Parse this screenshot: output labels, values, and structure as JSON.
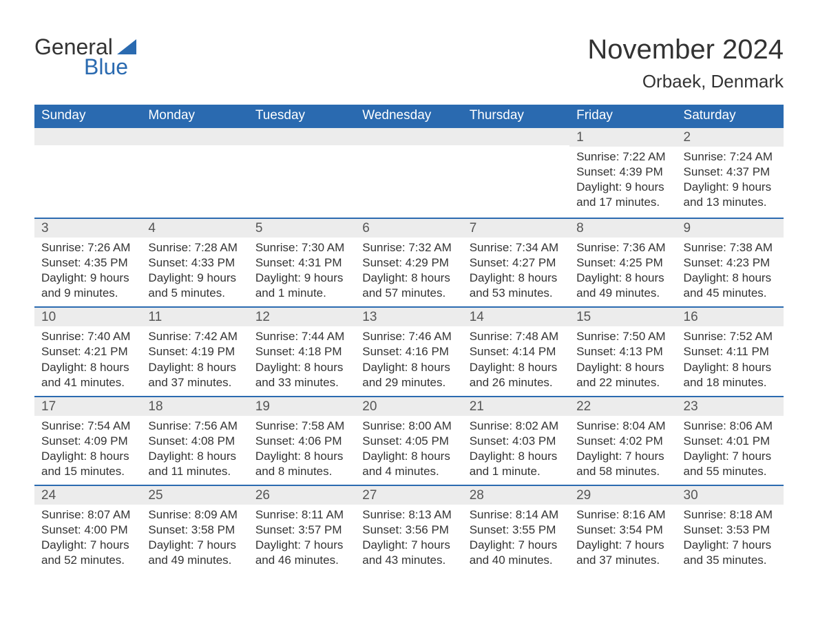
{
  "brand": {
    "general": "General",
    "blue": "Blue",
    "accent": "#2a6ab0"
  },
  "title": "November 2024",
  "location": "Orbaek, Denmark",
  "colors": {
    "header_bg": "#2a6ab0",
    "header_text": "#ffffff",
    "daynum_bg": "#ececec",
    "rule": "#2a6ab0",
    "body_bg": "#ffffff",
    "text": "#333333"
  },
  "fonts": {
    "family": "Segoe UI, Arial, sans-serif",
    "title_size_pt": 30,
    "location_size_pt": 20,
    "weekday_size_pt": 14,
    "daynum_size_pt": 14,
    "body_size_pt": 13
  },
  "weekdays": [
    "Sunday",
    "Monday",
    "Tuesday",
    "Wednesday",
    "Thursday",
    "Friday",
    "Saturday"
  ],
  "layout": {
    "columns": 7,
    "rows": 5,
    "first_day_column_index": 5
  },
  "grid": [
    [
      null,
      null,
      null,
      null,
      null,
      {
        "n": "1",
        "sunrise": "Sunrise: 7:22 AM",
        "sunset": "Sunset: 4:39 PM",
        "day1": "Daylight: 9 hours",
        "day2": "and 17 minutes."
      },
      {
        "n": "2",
        "sunrise": "Sunrise: 7:24 AM",
        "sunset": "Sunset: 4:37 PM",
        "day1": "Daylight: 9 hours",
        "day2": "and 13 minutes."
      }
    ],
    [
      {
        "n": "3",
        "sunrise": "Sunrise: 7:26 AM",
        "sunset": "Sunset: 4:35 PM",
        "day1": "Daylight: 9 hours",
        "day2": "and 9 minutes."
      },
      {
        "n": "4",
        "sunrise": "Sunrise: 7:28 AM",
        "sunset": "Sunset: 4:33 PM",
        "day1": "Daylight: 9 hours",
        "day2": "and 5 minutes."
      },
      {
        "n": "5",
        "sunrise": "Sunrise: 7:30 AM",
        "sunset": "Sunset: 4:31 PM",
        "day1": "Daylight: 9 hours",
        "day2": "and 1 minute."
      },
      {
        "n": "6",
        "sunrise": "Sunrise: 7:32 AM",
        "sunset": "Sunset: 4:29 PM",
        "day1": "Daylight: 8 hours",
        "day2": "and 57 minutes."
      },
      {
        "n": "7",
        "sunrise": "Sunrise: 7:34 AM",
        "sunset": "Sunset: 4:27 PM",
        "day1": "Daylight: 8 hours",
        "day2": "and 53 minutes."
      },
      {
        "n": "8",
        "sunrise": "Sunrise: 7:36 AM",
        "sunset": "Sunset: 4:25 PM",
        "day1": "Daylight: 8 hours",
        "day2": "and 49 minutes."
      },
      {
        "n": "9",
        "sunrise": "Sunrise: 7:38 AM",
        "sunset": "Sunset: 4:23 PM",
        "day1": "Daylight: 8 hours",
        "day2": "and 45 minutes."
      }
    ],
    [
      {
        "n": "10",
        "sunrise": "Sunrise: 7:40 AM",
        "sunset": "Sunset: 4:21 PM",
        "day1": "Daylight: 8 hours",
        "day2": "and 41 minutes."
      },
      {
        "n": "11",
        "sunrise": "Sunrise: 7:42 AM",
        "sunset": "Sunset: 4:19 PM",
        "day1": "Daylight: 8 hours",
        "day2": "and 37 minutes."
      },
      {
        "n": "12",
        "sunrise": "Sunrise: 7:44 AM",
        "sunset": "Sunset: 4:18 PM",
        "day1": "Daylight: 8 hours",
        "day2": "and 33 minutes."
      },
      {
        "n": "13",
        "sunrise": "Sunrise: 7:46 AM",
        "sunset": "Sunset: 4:16 PM",
        "day1": "Daylight: 8 hours",
        "day2": "and 29 minutes."
      },
      {
        "n": "14",
        "sunrise": "Sunrise: 7:48 AM",
        "sunset": "Sunset: 4:14 PM",
        "day1": "Daylight: 8 hours",
        "day2": "and 26 minutes."
      },
      {
        "n": "15",
        "sunrise": "Sunrise: 7:50 AM",
        "sunset": "Sunset: 4:13 PM",
        "day1": "Daylight: 8 hours",
        "day2": "and 22 minutes."
      },
      {
        "n": "16",
        "sunrise": "Sunrise: 7:52 AM",
        "sunset": "Sunset: 4:11 PM",
        "day1": "Daylight: 8 hours",
        "day2": "and 18 minutes."
      }
    ],
    [
      {
        "n": "17",
        "sunrise": "Sunrise: 7:54 AM",
        "sunset": "Sunset: 4:09 PM",
        "day1": "Daylight: 8 hours",
        "day2": "and 15 minutes."
      },
      {
        "n": "18",
        "sunrise": "Sunrise: 7:56 AM",
        "sunset": "Sunset: 4:08 PM",
        "day1": "Daylight: 8 hours",
        "day2": "and 11 minutes."
      },
      {
        "n": "19",
        "sunrise": "Sunrise: 7:58 AM",
        "sunset": "Sunset: 4:06 PM",
        "day1": "Daylight: 8 hours",
        "day2": "and 8 minutes."
      },
      {
        "n": "20",
        "sunrise": "Sunrise: 8:00 AM",
        "sunset": "Sunset: 4:05 PM",
        "day1": "Daylight: 8 hours",
        "day2": "and 4 minutes."
      },
      {
        "n": "21",
        "sunrise": "Sunrise: 8:02 AM",
        "sunset": "Sunset: 4:03 PM",
        "day1": "Daylight: 8 hours",
        "day2": "and 1 minute."
      },
      {
        "n": "22",
        "sunrise": "Sunrise: 8:04 AM",
        "sunset": "Sunset: 4:02 PM",
        "day1": "Daylight: 7 hours",
        "day2": "and 58 minutes."
      },
      {
        "n": "23",
        "sunrise": "Sunrise: 8:06 AM",
        "sunset": "Sunset: 4:01 PM",
        "day1": "Daylight: 7 hours",
        "day2": "and 55 minutes."
      }
    ],
    [
      {
        "n": "24",
        "sunrise": "Sunrise: 8:07 AM",
        "sunset": "Sunset: 4:00 PM",
        "day1": "Daylight: 7 hours",
        "day2": "and 52 minutes."
      },
      {
        "n": "25",
        "sunrise": "Sunrise: 8:09 AM",
        "sunset": "Sunset: 3:58 PM",
        "day1": "Daylight: 7 hours",
        "day2": "and 49 minutes."
      },
      {
        "n": "26",
        "sunrise": "Sunrise: 8:11 AM",
        "sunset": "Sunset: 3:57 PM",
        "day1": "Daylight: 7 hours",
        "day2": "and 46 minutes."
      },
      {
        "n": "27",
        "sunrise": "Sunrise: 8:13 AM",
        "sunset": "Sunset: 3:56 PM",
        "day1": "Daylight: 7 hours",
        "day2": "and 43 minutes."
      },
      {
        "n": "28",
        "sunrise": "Sunrise: 8:14 AM",
        "sunset": "Sunset: 3:55 PM",
        "day1": "Daylight: 7 hours",
        "day2": "and 40 minutes."
      },
      {
        "n": "29",
        "sunrise": "Sunrise: 8:16 AM",
        "sunset": "Sunset: 3:54 PM",
        "day1": "Daylight: 7 hours",
        "day2": "and 37 minutes."
      },
      {
        "n": "30",
        "sunrise": "Sunrise: 8:18 AM",
        "sunset": "Sunset: 3:53 PM",
        "day1": "Daylight: 7 hours",
        "day2": "and 35 minutes."
      }
    ]
  ]
}
